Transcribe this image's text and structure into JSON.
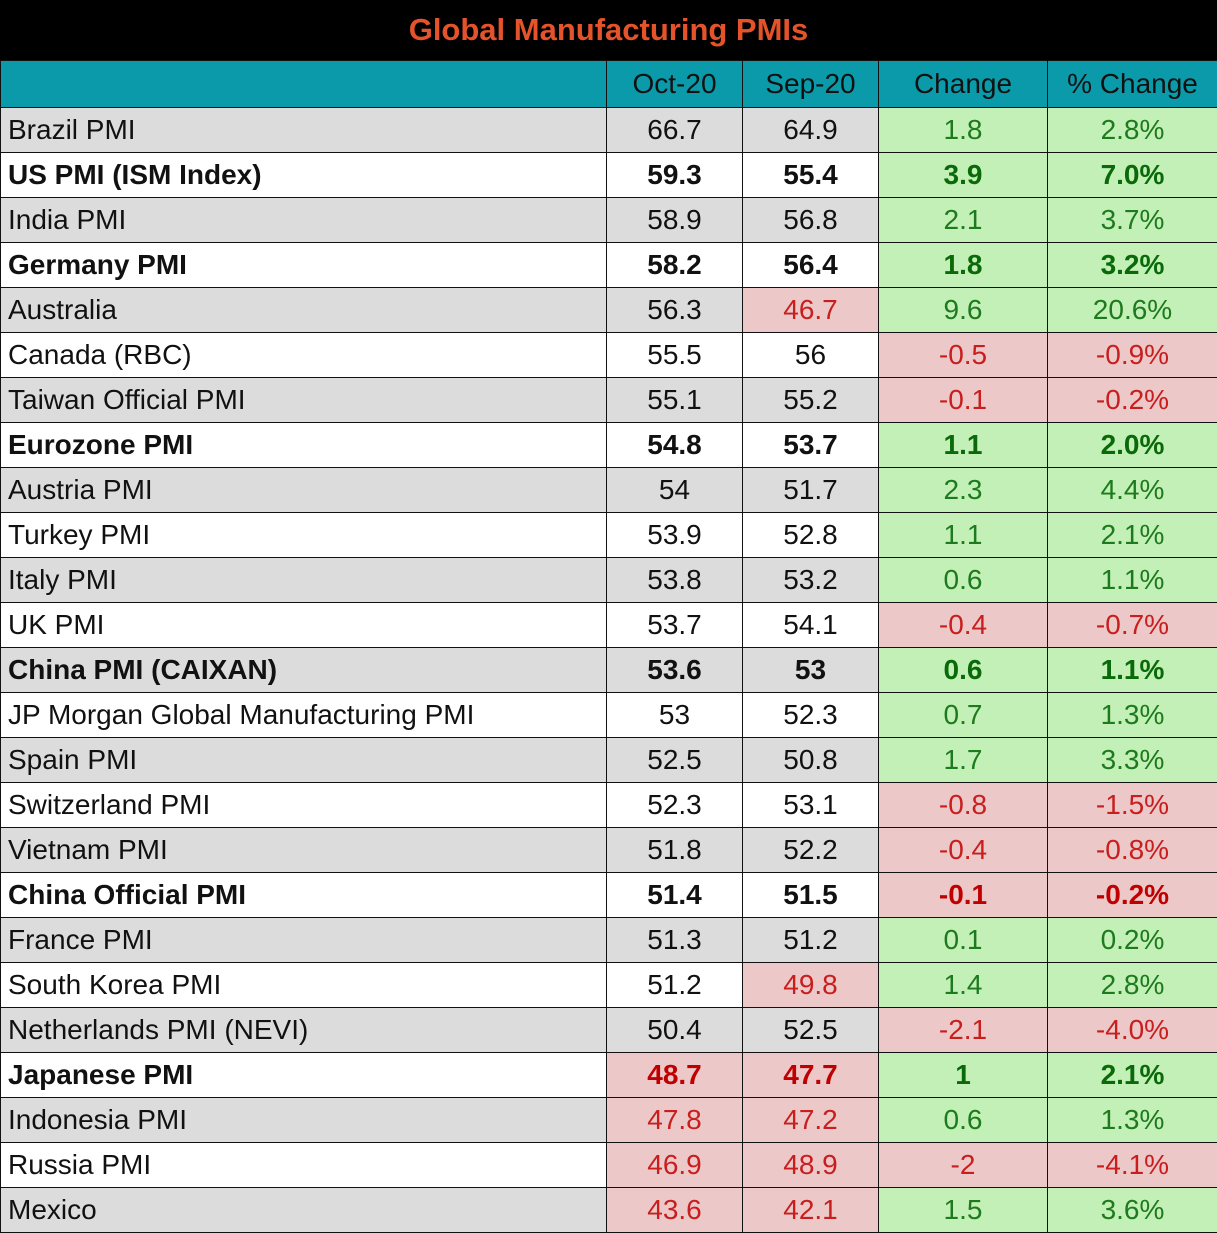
{
  "title": "Global Manufacturing PMIs",
  "colors": {
    "title_bg": "#000000",
    "title_text": "#e4532a",
    "header_bg": "#0a9aaa",
    "positive_bg": "#c2f0b6",
    "positive_text": "#1e7a1e",
    "negative_bg": "#ecc8c8",
    "negative_text": "#c81e1e",
    "row_shade": "#dcdcdc"
  },
  "columns": [
    "",
    "Oct-20",
    "Sep-20",
    "Change",
    "% Change"
  ],
  "chart_data": {
    "type": "table",
    "title": "Global Manufacturing PMIs",
    "columns": [
      "",
      "Oct-20",
      "Sep-20",
      "Change",
      "% Change"
    ],
    "rows": [
      {
        "name": "Brazil PMI",
        "oct": "66.7",
        "sep": "64.9",
        "change": "1.8",
        "pct": "2.8%",
        "bold": false,
        "shade": true,
        "flags": [
          "",
          "",
          "pos",
          "pos"
        ]
      },
      {
        "name": "US PMI (ISM Index)",
        "oct": "59.3",
        "sep": "55.4",
        "change": "3.9",
        "pct": "7.0%",
        "bold": true,
        "shade": false,
        "flags": [
          "",
          "",
          "pos",
          "pos"
        ]
      },
      {
        "name": "India PMI",
        "oct": "58.9",
        "sep": "56.8",
        "change": "2.1",
        "pct": "3.7%",
        "bold": false,
        "shade": true,
        "flags": [
          "",
          "",
          "pos",
          "pos"
        ]
      },
      {
        "name": "Germany PMI",
        "oct": "58.2",
        "sep": "56.4",
        "change": "1.8",
        "pct": "3.2%",
        "bold": true,
        "shade": false,
        "flags": [
          "",
          "",
          "pos",
          "pos"
        ]
      },
      {
        "name": "Australia",
        "oct": "56.3",
        "sep": "46.7",
        "change": "9.6",
        "pct": "20.6%",
        "bold": false,
        "shade": true,
        "flags": [
          "",
          "neg",
          "pos",
          "pos"
        ]
      },
      {
        "name": "Canada (RBC)",
        "oct": "55.5",
        "sep": "56",
        "change": "-0.5",
        "pct": "-0.9%",
        "bold": false,
        "shade": false,
        "flags": [
          "",
          "",
          "neg",
          "neg"
        ]
      },
      {
        "name": "Taiwan Official PMI",
        "oct": "55.1",
        "sep": "55.2",
        "change": "-0.1",
        "pct": "-0.2%",
        "bold": false,
        "shade": true,
        "flags": [
          "",
          "",
          "neg",
          "neg"
        ]
      },
      {
        "name": "Eurozone PMI",
        "oct": "54.8",
        "sep": "53.7",
        "change": "1.1",
        "pct": "2.0%",
        "bold": true,
        "shade": false,
        "flags": [
          "",
          "",
          "pos",
          "pos"
        ]
      },
      {
        "name": "Austria PMI",
        "oct": "54",
        "sep": "51.7",
        "change": "2.3",
        "pct": "4.4%",
        "bold": false,
        "shade": true,
        "flags": [
          "",
          "",
          "pos",
          "pos"
        ]
      },
      {
        "name": "Turkey PMI",
        "oct": "53.9",
        "sep": "52.8",
        "change": "1.1",
        "pct": "2.1%",
        "bold": false,
        "shade": false,
        "flags": [
          "",
          "",
          "pos",
          "pos"
        ]
      },
      {
        "name": "Italy PMI",
        "oct": "53.8",
        "sep": "53.2",
        "change": "0.6",
        "pct": "1.1%",
        "bold": false,
        "shade": true,
        "flags": [
          "",
          "",
          "pos",
          "pos"
        ]
      },
      {
        "name": "UK PMI",
        "oct": "53.7",
        "sep": "54.1",
        "change": "-0.4",
        "pct": "-0.7%",
        "bold": false,
        "shade": false,
        "flags": [
          "",
          "",
          "neg",
          "neg"
        ]
      },
      {
        "name": "China PMI (CAIXAN)",
        "oct": "53.6",
        "sep": "53",
        "change": "0.6",
        "pct": "1.1%",
        "bold": true,
        "shade": true,
        "flags": [
          "",
          "",
          "pos",
          "pos"
        ]
      },
      {
        "name": "JP Morgan Global Manufacturing PMI",
        "oct": "53",
        "sep": "52.3",
        "change": "0.7",
        "pct": "1.3%",
        "bold": false,
        "shade": false,
        "flags": [
          "",
          "",
          "pos",
          "pos"
        ]
      },
      {
        "name": "Spain PMI",
        "oct": "52.5",
        "sep": "50.8",
        "change": "1.7",
        "pct": "3.3%",
        "bold": false,
        "shade": true,
        "flags": [
          "",
          "",
          "pos",
          "pos"
        ]
      },
      {
        "name": "Switzerland PMI",
        "oct": "52.3",
        "sep": "53.1",
        "change": "-0.8",
        "pct": "-1.5%",
        "bold": false,
        "shade": false,
        "flags": [
          "",
          "",
          "neg",
          "neg"
        ]
      },
      {
        "name": "Vietnam PMI",
        "oct": "51.8",
        "sep": "52.2",
        "change": "-0.4",
        "pct": "-0.8%",
        "bold": false,
        "shade": true,
        "flags": [
          "",
          "",
          "neg",
          "neg"
        ]
      },
      {
        "name": "China Official PMI",
        "oct": "51.4",
        "sep": "51.5",
        "change": "-0.1",
        "pct": "-0.2%",
        "bold": true,
        "shade": false,
        "flags": [
          "",
          "",
          "neg",
          "neg"
        ]
      },
      {
        "name": "France PMI",
        "oct": "51.3",
        "sep": "51.2",
        "change": "0.1",
        "pct": "0.2%",
        "bold": false,
        "shade": true,
        "flags": [
          "",
          "",
          "pos",
          "pos"
        ]
      },
      {
        "name": "South Korea PMI",
        "oct": "51.2",
        "sep": "49.8",
        "change": "1.4",
        "pct": "2.8%",
        "bold": false,
        "shade": false,
        "flags": [
          "",
          "neg",
          "pos",
          "pos"
        ]
      },
      {
        "name": "Netherlands PMI (NEVI)",
        "oct": "50.4",
        "sep": "52.5",
        "change": "-2.1",
        "pct": "-4.0%",
        "bold": false,
        "shade": true,
        "flags": [
          "",
          "",
          "neg",
          "neg"
        ]
      },
      {
        "name": "Japanese PMI",
        "oct": "48.7",
        "sep": "47.7",
        "change": "1",
        "pct": "2.1%",
        "bold": true,
        "shade": false,
        "flags": [
          "neg",
          "neg",
          "pos",
          "pos"
        ]
      },
      {
        "name": "Indonesia PMI",
        "oct": "47.8",
        "sep": "47.2",
        "change": "0.6",
        "pct": "1.3%",
        "bold": false,
        "shade": true,
        "flags": [
          "neg",
          "neg",
          "pos",
          "pos"
        ]
      },
      {
        "name": "Russia PMI",
        "oct": "46.9",
        "sep": "48.9",
        "change": "-2",
        "pct": "-4.1%",
        "bold": false,
        "shade": false,
        "flags": [
          "neg",
          "neg",
          "neg",
          "neg"
        ]
      },
      {
        "name": "Mexico",
        "oct": "43.6",
        "sep": "42.1",
        "change": "1.5",
        "pct": "3.6%",
        "bold": false,
        "shade": true,
        "flags": [
          "neg",
          "neg",
          "pos",
          "pos"
        ]
      }
    ]
  }
}
